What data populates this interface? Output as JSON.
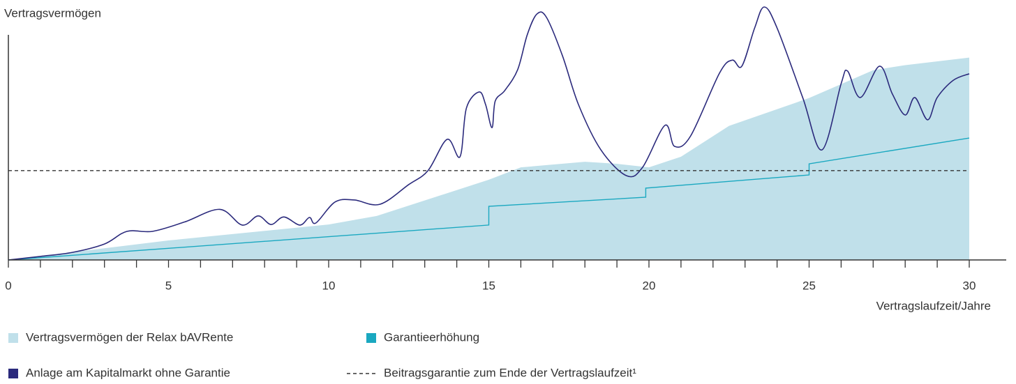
{
  "chart_data": {
    "type": "line",
    "ylabel": "Vertragsvermögen",
    "xlabel": "Vertragslaufzeit/Jahre",
    "xlim": [
      0,
      30
    ],
    "ylim": [
      0,
      100
    ],
    "xticks": [
      0,
      5,
      10,
      15,
      20,
      25,
      30
    ],
    "minor_xticks": [
      1,
      2,
      3,
      4,
      6,
      7,
      8,
      9,
      11,
      12,
      13,
      14,
      16,
      17,
      18,
      19,
      21,
      22,
      23,
      24,
      26,
      27,
      28,
      29
    ],
    "series": [
      {
        "name": "Vertragsvermögen der Relax bAVRente",
        "kind": "area",
        "color": "#c0e0ea",
        "x": [
          0,
          5,
          10,
          11.5,
          15,
          16,
          18,
          19,
          20,
          21,
          22.5,
          25,
          27,
          28,
          30
        ],
        "values": [
          0,
          7.7,
          14,
          17.4,
          31.7,
          36.6,
          38.8,
          38,
          36.6,
          40.8,
          53,
          64,
          75,
          77,
          80
        ]
      },
      {
        "name": "Garantieerhöhung",
        "kind": "line",
        "color": "#1aa8c0",
        "x": [
          0,
          15,
          15,
          19.9,
          19.9,
          25,
          25,
          30
        ],
        "values": [
          0,
          13.8,
          21.2,
          24.8,
          28.4,
          33.6,
          38,
          48.2
        ]
      },
      {
        "name": "Anlage am Kapitalmarkt ohne Garantie",
        "kind": "smooth",
        "color": "#2b2a7c",
        "x": [
          0,
          1,
          2,
          3,
          3.7,
          4.5,
          5.5,
          6.6,
          7.3,
          7.8,
          8.2,
          8.6,
          9.1,
          9.4,
          9.6,
          10.2,
          10.8,
          11.6,
          12.5,
          13.1,
          13.7,
          14.1,
          14.3,
          14.7,
          14.9,
          15.1,
          15.2,
          15.5,
          15.9,
          16.2,
          16.5,
          16.8,
          17.3,
          17.8,
          18.5,
          19.3,
          19.8,
          20.5,
          20.8,
          21.3,
          22.2,
          22.6,
          22.9,
          23.3,
          23.6,
          24,
          24.8,
          25.4,
          26,
          26.2,
          26.6,
          27.2,
          27.6,
          28,
          28.3,
          28.7,
          29,
          29.5,
          30
        ],
        "values": [
          0,
          1.4,
          3,
          6.3,
          11.3,
          11.3,
          15,
          20,
          13.8,
          17.4,
          14,
          17,
          13.8,
          16.8,
          14.6,
          22.9,
          23.7,
          22,
          29.8,
          35.3,
          47.7,
          40.8,
          60,
          66.4,
          61.4,
          52.3,
          62.8,
          67,
          75.2,
          89,
          97.2,
          95.9,
          80.7,
          61.4,
          43.5,
          33.3,
          36.6,
          53.2,
          44.9,
          49,
          73.8,
          79,
          76.6,
          91.7,
          100,
          91.7,
          64.2,
          43.5,
          69.7,
          74.7,
          64.2,
          76.6,
          65.6,
          57.3,
          64.2,
          55.4,
          64.2,
          71,
          73.6
        ]
      },
      {
        "name": "Beitragsgarantie zum Ende der Vertragslaufzeit¹",
        "kind": "dashed",
        "color": "#333333",
        "x": [
          0,
          30
        ],
        "values": [
          35.3,
          35.3
        ]
      }
    ]
  }
}
